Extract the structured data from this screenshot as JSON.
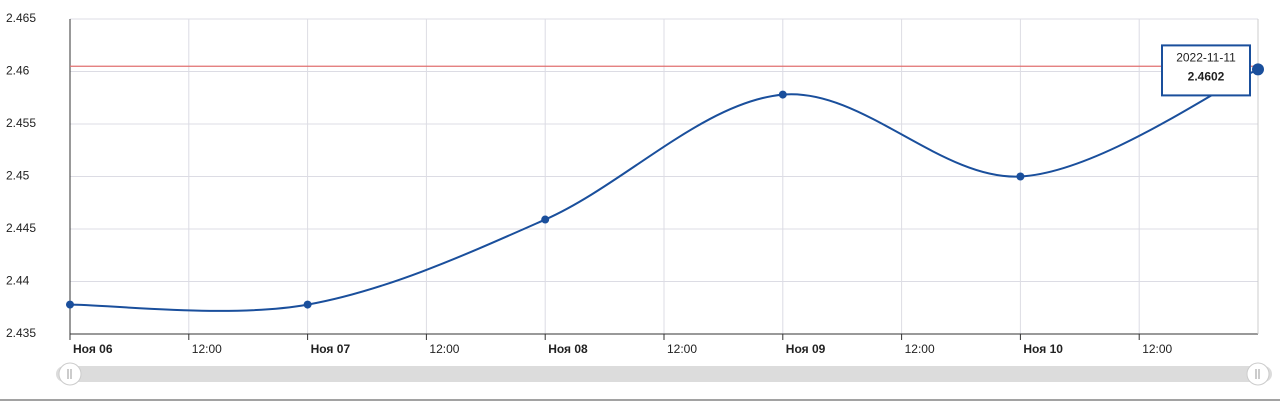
{
  "chart_data": {
    "type": "line",
    "x": [
      "2022-11-06",
      "2022-11-07",
      "2022-11-08",
      "2022-11-09",
      "2022-11-10",
      "2022-11-11"
    ],
    "series": [
      {
        "name": null,
        "color": "#1a4f9c",
        "values": [
          2.4378,
          2.4378,
          2.4459,
          2.4578,
          2.45,
          2.4602
        ]
      }
    ],
    "xlim": [
      "2022-11-06T00:00",
      "2022-11-11T00:00"
    ],
    "xticks": [
      {
        "value": "2022-11-06T00:00",
        "label": "Ноя 06"
      },
      {
        "value": "2022-11-06T12:00",
        "label": "12:00"
      },
      {
        "value": "2022-11-07T00:00",
        "label": "Ноя 07"
      },
      {
        "value": "2022-11-07T12:00",
        "label": "12:00"
      },
      {
        "value": "2022-11-08T00:00",
        "label": "Ноя 08"
      },
      {
        "value": "2022-11-08T12:00",
        "label": "12:00"
      },
      {
        "value": "2022-11-09T00:00",
        "label": "Ноя 09"
      },
      {
        "value": "2022-11-09T12:00",
        "label": "12:00"
      },
      {
        "value": "2022-11-10T00:00",
        "label": "Ноя 10"
      },
      {
        "value": "2022-11-10T12:00",
        "label": "12:00"
      }
    ],
    "ylim": [
      2.435,
      2.465
    ],
    "yticks": [
      2.435,
      2.44,
      2.445,
      2.45,
      2.455,
      2.46,
      2.465
    ],
    "reference_line": {
      "value": 2.4605,
      "color": "#e07070"
    },
    "tooltip_index": 5,
    "grid": true
  }
}
